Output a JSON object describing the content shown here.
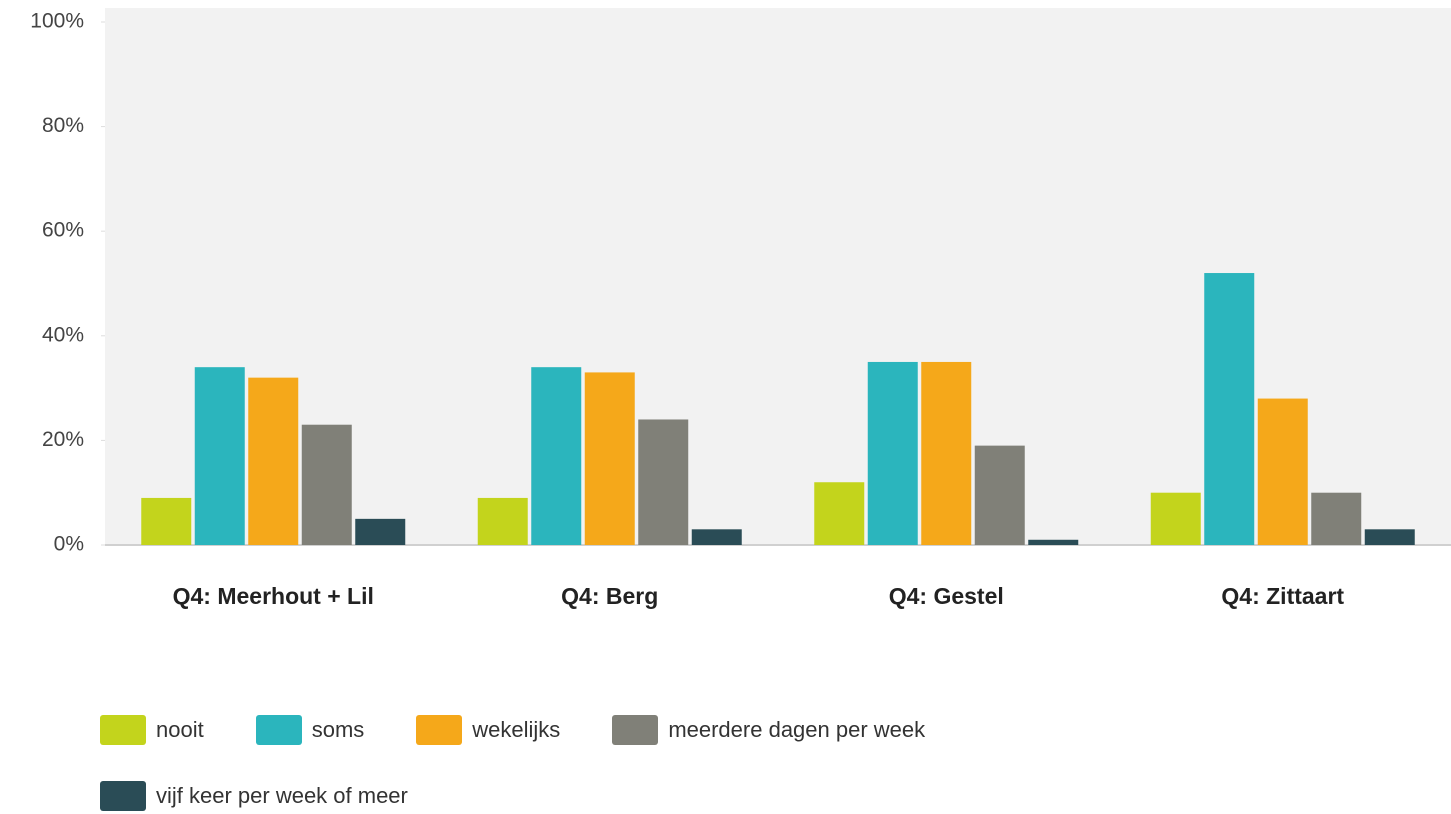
{
  "chart_data": {
    "type": "bar",
    "categories": [
      "Q4: Meerhout + Lil",
      "Q4: Berg",
      "Q4: Gestel",
      "Q4: Zittaart"
    ],
    "series": [
      {
        "name": "nooit",
        "color": "#c3d41c",
        "values": [
          9,
          9,
          12,
          10
        ]
      },
      {
        "name": "soms",
        "color": "#2bb5bd",
        "values": [
          34,
          34,
          35,
          52
        ]
      },
      {
        "name": "wekelijks",
        "color": "#f5a81a",
        "values": [
          32,
          33,
          35,
          28
        ]
      },
      {
        "name": "meerdere dagen per week",
        "color": "#808078",
        "values": [
          23,
          24,
          19,
          10
        ]
      },
      {
        "name": "vijf keer per week of meer",
        "color": "#2a4c56",
        "values": [
          5,
          3,
          1,
          3
        ]
      }
    ],
    "ylim": [
      0,
      100
    ],
    "yticks": [
      {
        "value": 0,
        "label": "0%"
      },
      {
        "value": 20,
        "label": "20%"
      },
      {
        "value": 40,
        "label": "40%"
      },
      {
        "value": 60,
        "label": "60%"
      },
      {
        "value": 80,
        "label": "80%"
      },
      {
        "value": 100,
        "label": "100%"
      }
    ],
    "legend": "bottom"
  }
}
